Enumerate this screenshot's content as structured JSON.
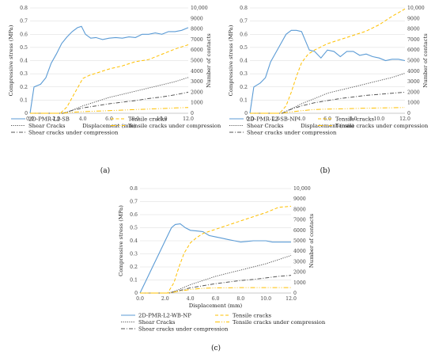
{
  "chart_data": [
    {
      "type": "line",
      "panel_label": "(a)",
      "xlabel": "Displacement (mm)",
      "ylabel": "Compressive stress (MPa)",
      "y2label": "Number of contacts",
      "xlim": [
        0,
        12
      ],
      "ylim": [
        0,
        0.8
      ],
      "y2lim": [
        0,
        10000
      ],
      "xticks": [
        "0.0",
        "2.0",
        "4.0",
        "6.0",
        "8.0",
        "10.0",
        "12.0"
      ],
      "yticks": [
        "0",
        "0.1",
        "0.2",
        "0.3",
        "0.4",
        "0.5",
        "0.6",
        "0.7",
        "0.8"
      ],
      "y2ticks": [
        "0",
        "1000",
        "2000",
        "3000",
        "4000",
        "5000",
        "6000",
        "7000",
        "8000",
        "9000",
        "10,000"
      ],
      "grid": true,
      "legend_position": "bottom",
      "series": [
        {
          "name": "2D-PMR-L2-SB",
          "axis": "left",
          "style": "solid",
          "color": "#5b9bd5",
          "x": [
            0,
            0.3,
            0.8,
            1.2,
            1.6,
            2.0,
            2.4,
            2.8,
            3.2,
            3.6,
            3.9,
            4.2,
            4.6,
            5.0,
            5.5,
            6.0,
            6.5,
            7.0,
            7.5,
            8.0,
            8.5,
            9.0,
            9.5,
            10.0,
            10.5,
            11.0,
            11.5,
            12.0
          ],
          "y": [
            0,
            0.2,
            0.22,
            0.27,
            0.38,
            0.45,
            0.53,
            0.58,
            0.62,
            0.65,
            0.66,
            0.6,
            0.57,
            0.575,
            0.56,
            0.57,
            0.575,
            0.57,
            0.58,
            0.575,
            0.6,
            0.6,
            0.61,
            0.6,
            0.62,
            0.62,
            0.63,
            0.65
          ]
        },
        {
          "name": "Shear Cracks",
          "axis": "right",
          "style": "dotted",
          "color": "#555555",
          "x": [
            0,
            2.5,
            3.0,
            4.0,
            5.0,
            6.0,
            7.0,
            8.0,
            9.0,
            10.0,
            11.0,
            12.0
          ],
          "y": [
            0,
            0,
            200,
            700,
            1100,
            1500,
            1800,
            2100,
            2400,
            2700,
            3000,
            3400
          ]
        },
        {
          "name": "Shear cracks under compression",
          "axis": "right",
          "style": "dashdot",
          "color": "#555555",
          "x": [
            0,
            2.5,
            3.0,
            4.0,
            5.0,
            6.0,
            7.0,
            8.0,
            9.0,
            10.0,
            11.0,
            12.0
          ],
          "y": [
            0,
            0,
            200,
            500,
            700,
            900,
            1050,
            1200,
            1400,
            1550,
            1750,
            2000
          ]
        },
        {
          "name": "Tensile cracks",
          "axis": "right",
          "style": "dashed",
          "color": "#ffc000",
          "x": [
            0,
            2.3,
            2.8,
            3.2,
            3.6,
            4.0,
            4.5,
            5.0,
            6.0,
            7.0,
            8.0,
            9.0,
            10.0,
            11.0,
            12.0
          ],
          "y": [
            0,
            0,
            600,
            1500,
            2400,
            3300,
            3600,
            3800,
            4200,
            4500,
            4900,
            5100,
            5600,
            6100,
            6500
          ]
        },
        {
          "name": "Tensile cracks under compression",
          "axis": "right",
          "style": "dashdot2",
          "color": "#ffc000",
          "x": [
            0,
            2.5,
            3.0,
            4.0,
            5.0,
            6.0,
            7.0,
            8.0,
            9.0,
            10.0,
            11.0,
            12.0
          ],
          "y": [
            0,
            0,
            80,
            150,
            200,
            250,
            300,
            350,
            400,
            450,
            500,
            550
          ]
        }
      ]
    },
    {
      "type": "line",
      "panel_label": "(b)",
      "xlabel": "Displacement (mm)",
      "ylabel": "Compressive stress (MPa)",
      "y2label": "Number of contacts",
      "xlim": [
        0,
        12
      ],
      "ylim": [
        0,
        0.8
      ],
      "y2lim": [
        0,
        10000
      ],
      "xticks": [
        "0.0",
        "2.0",
        "4.0",
        "6.0",
        "8.0",
        "10.0",
        "12.0"
      ],
      "yticks": [
        "0",
        "0.1",
        "0.2",
        "0.3",
        "0.4",
        "0.5",
        "0.6",
        "0.7",
        "0.8"
      ],
      "y2ticks": [
        "0",
        "1000",
        "2000",
        "3000",
        "4000",
        "5000",
        "6000",
        "7000",
        "8000",
        "9000",
        "10,000"
      ],
      "grid": true,
      "legend_position": "bottom",
      "series": [
        {
          "name": "2D-PMR-L2-SB-NP",
          "axis": "left",
          "style": "solid",
          "color": "#5b9bd5",
          "x": [
            0,
            0.3,
            0.8,
            1.2,
            1.6,
            2.0,
            2.4,
            2.8,
            3.2,
            3.6,
            4.0,
            4.3,
            4.6,
            5.0,
            5.5,
            6.0,
            6.5,
            7.0,
            7.5,
            8.0,
            8.5,
            9.0,
            9.5,
            10.0,
            10.5,
            11.0,
            11.5,
            12.0
          ],
          "y": [
            0,
            0.2,
            0.23,
            0.27,
            0.39,
            0.46,
            0.53,
            0.6,
            0.63,
            0.63,
            0.62,
            0.55,
            0.48,
            0.47,
            0.42,
            0.48,
            0.47,
            0.43,
            0.47,
            0.47,
            0.44,
            0.45,
            0.43,
            0.42,
            0.4,
            0.41,
            0.41,
            0.4
          ]
        },
        {
          "name": "Shear Cracks",
          "axis": "right",
          "style": "dotted",
          "color": "#555555",
          "x": [
            0,
            2.5,
            3.0,
            4.0,
            5.0,
            6.0,
            7.0,
            8.0,
            9.0,
            10.0,
            11.0,
            12.0
          ],
          "y": [
            0,
            0,
            300,
            900,
            1400,
            1900,
            2200,
            2500,
            2800,
            3100,
            3400,
            3800
          ]
        },
        {
          "name": "Shear cracks under compression",
          "axis": "right",
          "style": "dashdot",
          "color": "#555555",
          "x": [
            0,
            2.5,
            3.0,
            4.0,
            5.0,
            6.0,
            7.0,
            8.0,
            9.0,
            10.0,
            11.0,
            12.0
          ],
          "y": [
            0,
            0,
            300,
            700,
            1000,
            1200,
            1400,
            1550,
            1700,
            1800,
            1900,
            2000
          ]
        },
        {
          "name": "Tensile cracks",
          "axis": "right",
          "style": "dashed",
          "color": "#ffc000",
          "x": [
            0,
            2.3,
            2.8,
            3.2,
            3.6,
            4.0,
            4.5,
            5.0,
            6.0,
            7.0,
            8.0,
            9.0,
            10.0,
            11.0,
            12.0
          ],
          "y": [
            0,
            0,
            700,
            2000,
            3500,
            4800,
            5600,
            6000,
            6600,
            7000,
            7400,
            7800,
            8400,
            9200,
            9900
          ]
        },
        {
          "name": "Tensile cracks under compression",
          "axis": "right",
          "style": "dashdot2",
          "color": "#ffc000",
          "x": [
            0,
            2.5,
            3.0,
            4.0,
            5.0,
            6.0,
            7.0,
            8.0,
            9.0,
            10.0,
            11.0,
            12.0
          ],
          "y": [
            0,
            0,
            100,
            250,
            350,
            400,
            420,
            450,
            480,
            500,
            520,
            550
          ]
        }
      ]
    },
    {
      "type": "line",
      "panel_label": "(c)",
      "xlabel": "Displacement (mm)",
      "ylabel": "Compressive stress (MPa)",
      "y2label": "Number of contacts",
      "xlim": [
        0,
        12
      ],
      "ylim": [
        0,
        0.8
      ],
      "y2lim": [
        0,
        10000
      ],
      "xticks": [
        "0.0",
        "2.0",
        "4.0",
        "6.0",
        "8.0",
        "10.0",
        "12.0"
      ],
      "yticks": [
        "0",
        "0.1",
        "0.2",
        "0.3",
        "0.4",
        "0.5",
        "0.6",
        "0.7",
        "0.8"
      ],
      "y2ticks": [
        "0",
        "1000",
        "2000",
        "3000",
        "4000",
        "5000",
        "6000",
        "7000",
        "8000",
        "9000",
        "10,000"
      ],
      "grid": true,
      "legend_position": "bottom",
      "series": [
        {
          "name": "2D-PMR-L2-WB-NP",
          "axis": "left",
          "style": "solid",
          "color": "#5b9bd5",
          "x": [
            0,
            0.5,
            1.0,
            1.5,
            2.0,
            2.5,
            2.8,
            3.2,
            3.6,
            4.0,
            4.5,
            5.0,
            5.5,
            6.0,
            6.5,
            7.0,
            7.5,
            8.0,
            8.5,
            9.0,
            9.5,
            10.0,
            10.5,
            11.0,
            11.5,
            12.0
          ],
          "y": [
            0,
            0.1,
            0.2,
            0.3,
            0.4,
            0.5,
            0.525,
            0.53,
            0.5,
            0.48,
            0.475,
            0.47,
            0.44,
            0.43,
            0.42,
            0.41,
            0.4,
            0.39,
            0.395,
            0.4,
            0.4,
            0.4,
            0.39,
            0.39,
            0.39,
            0.39
          ]
        },
        {
          "name": "Shear Cracks",
          "axis": "right",
          "style": "dotted",
          "color": "#555555",
          "x": [
            0,
            2.3,
            3.0,
            4.0,
            5.0,
            6.0,
            7.0,
            8.0,
            9.0,
            10.0,
            11.0,
            12.0
          ],
          "y": [
            0,
            0,
            300,
            800,
            1200,
            1600,
            1900,
            2200,
            2500,
            2800,
            3200,
            3600
          ]
        },
        {
          "name": "Shear cracks under compression",
          "axis": "right",
          "style": "dashdot",
          "color": "#555555",
          "x": [
            0,
            2.3,
            3.0,
            4.0,
            5.0,
            6.0,
            7.0,
            8.0,
            9.0,
            10.0,
            11.0,
            12.0
          ],
          "y": [
            0,
            0,
            200,
            500,
            700,
            900,
            1050,
            1200,
            1300,
            1450,
            1600,
            1700
          ]
        },
        {
          "name": "Tensile cracks",
          "axis": "right",
          "style": "dashed",
          "color": "#ffc000",
          "x": [
            0,
            2.2,
            2.7,
            3.1,
            3.5,
            4.0,
            4.5,
            5.0,
            6.0,
            7.0,
            8.0,
            9.0,
            10.0,
            11.0,
            12.0
          ],
          "y": [
            0,
            0,
            1000,
            2500,
            3800,
            4800,
            5300,
            5700,
            6100,
            6500,
            6900,
            7300,
            7700,
            8200,
            8300
          ]
        },
        {
          "name": "Tensile cracks under compression",
          "axis": "right",
          "style": "dashdot2",
          "color": "#ffc000",
          "x": [
            0,
            2.3,
            3.0,
            4.0,
            5.0,
            6.0,
            7.0,
            8.0,
            9.0,
            10.0,
            11.0,
            12.0
          ],
          "y": [
            0,
            0,
            150,
            350,
            450,
            500,
            500,
            520,
            520,
            520,
            520,
            520
          ]
        }
      ]
    }
  ]
}
